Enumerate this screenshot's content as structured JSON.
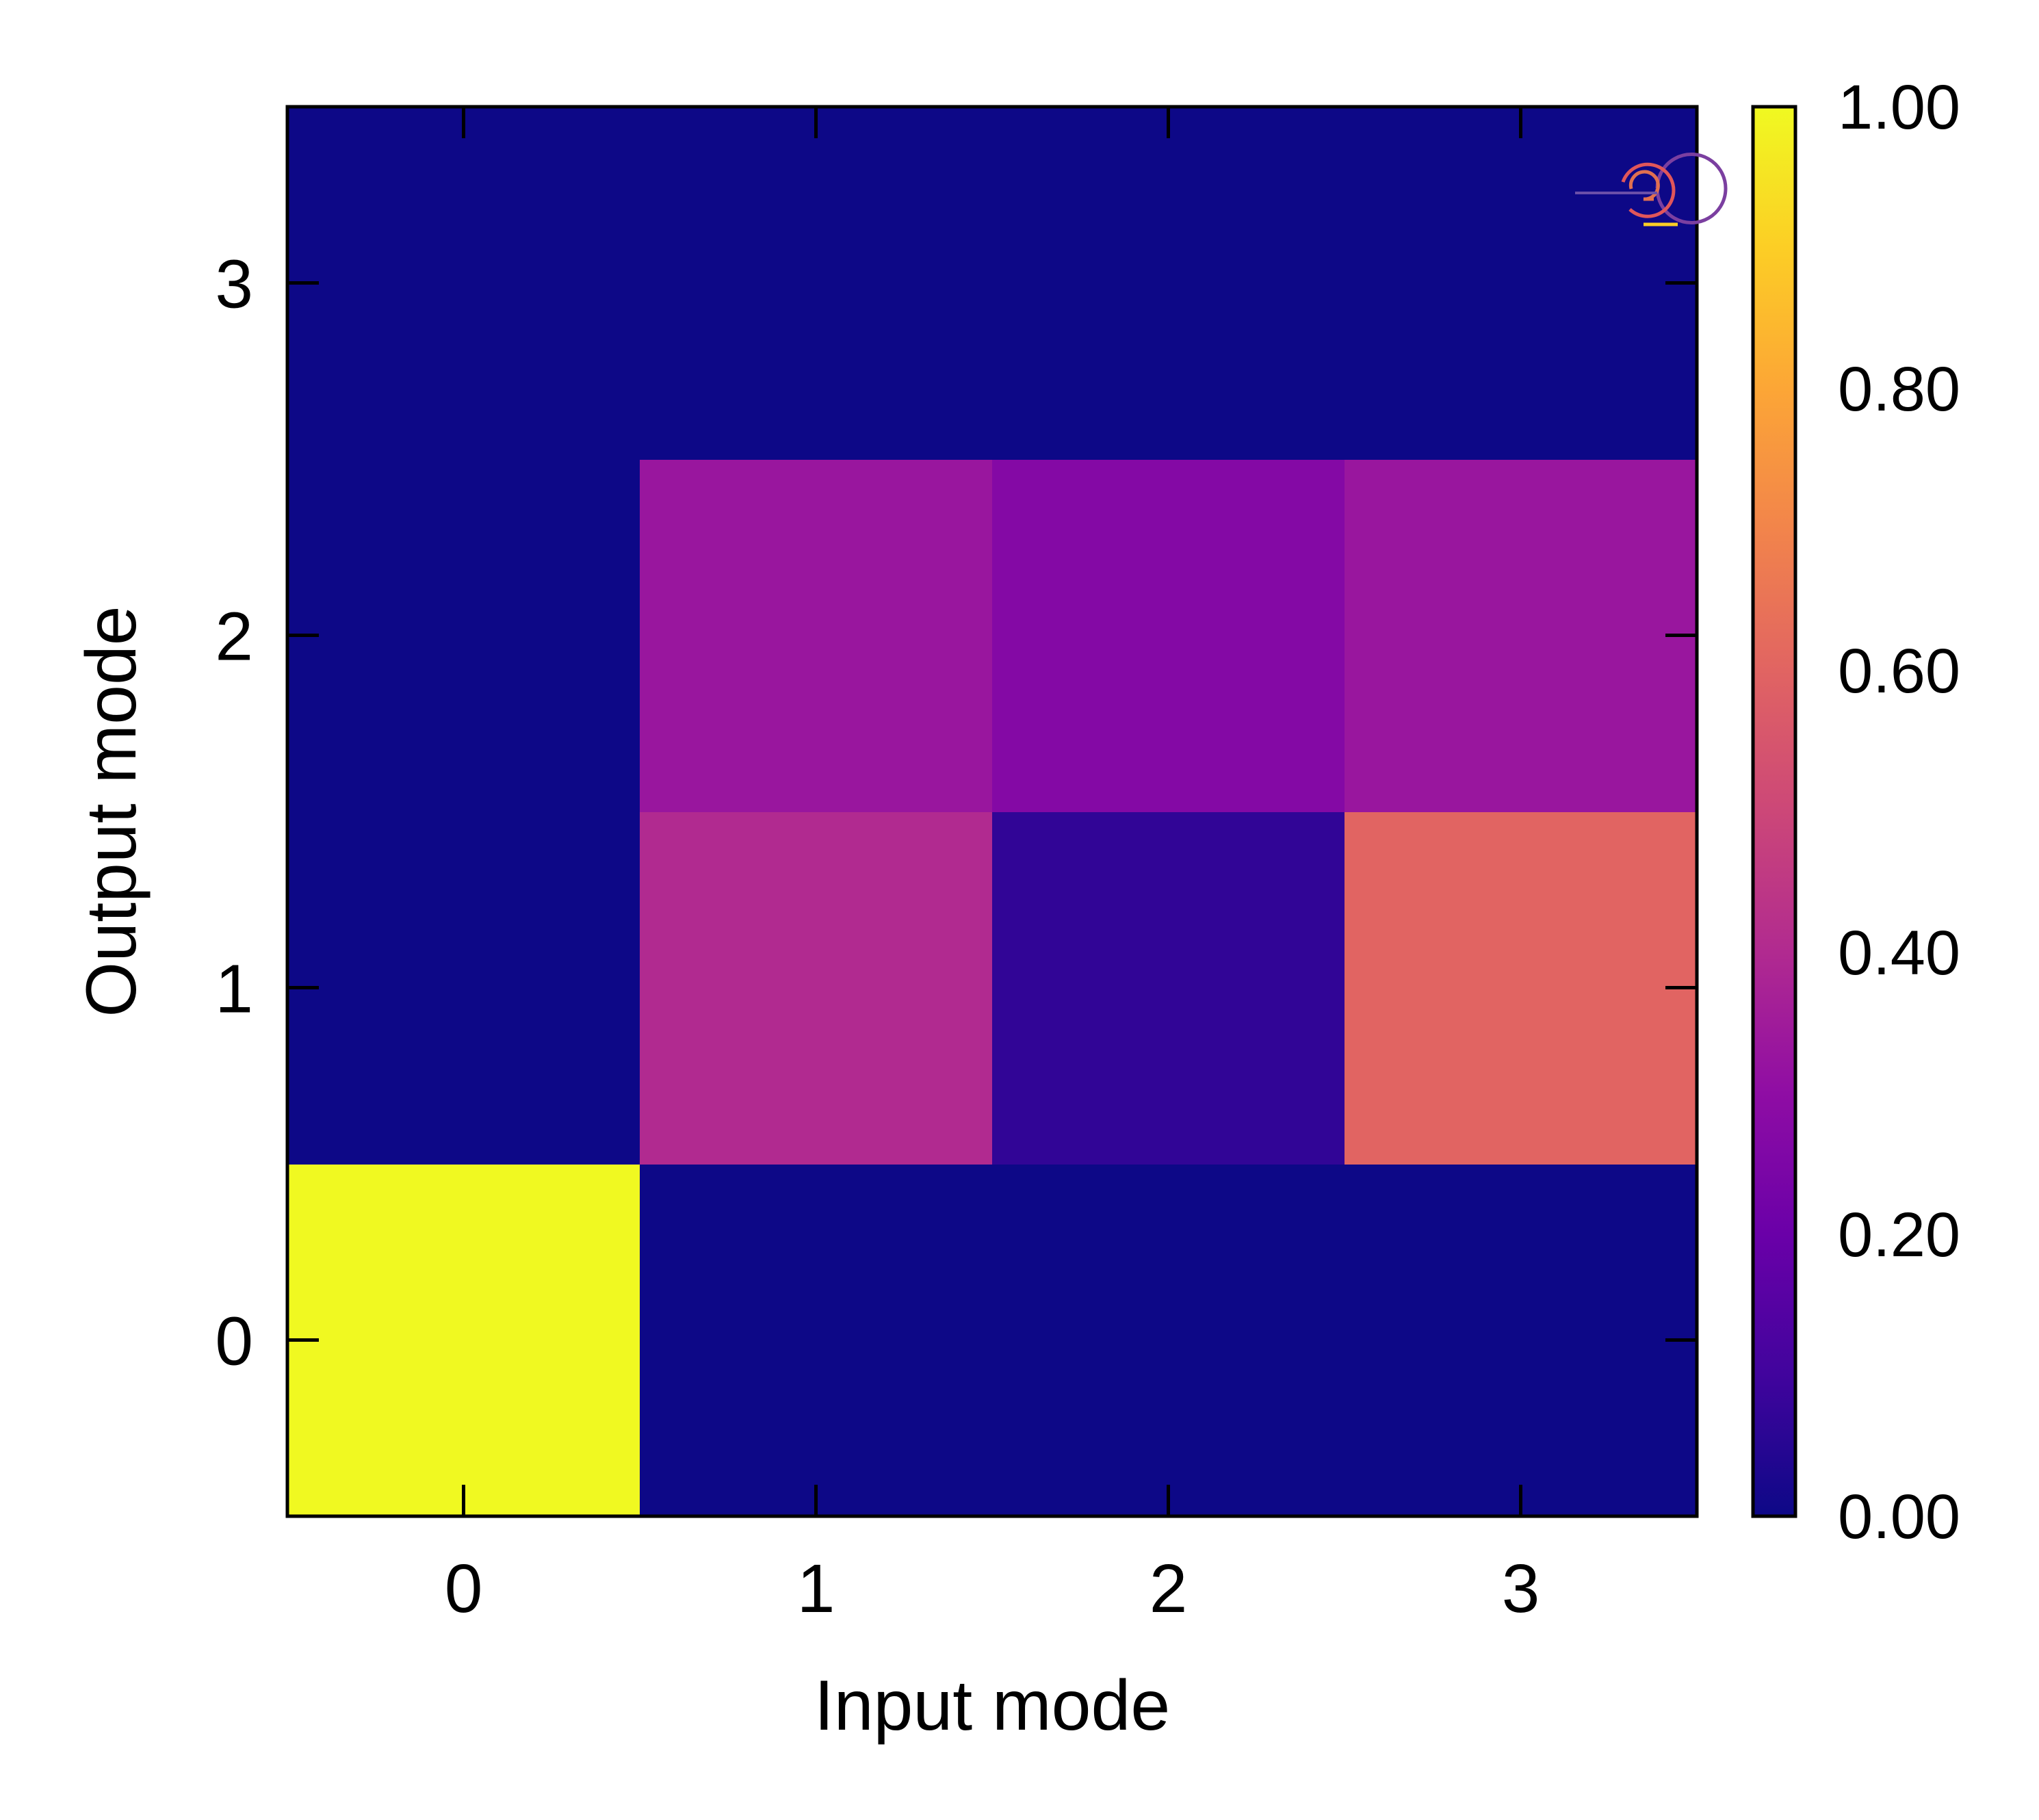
{
  "chart_data": {
    "type": "heatmap",
    "title": "",
    "xlabel": "Input mode",
    "ylabel": "Output mode",
    "x_categories": [
      "0",
      "1",
      "2",
      "3"
    ],
    "y_categories": [
      "0",
      "1",
      "2",
      "3"
    ],
    "colormap": "plasma",
    "colorbar": {
      "range": [
        0,
        1
      ],
      "ticks": [
        "0.00",
        "0.20",
        "0.40",
        "0.60",
        "0.80",
        "1.00"
      ]
    },
    "grid": false,
    "logo": "spiral-logo-icon",
    "rows": [
      {
        "output_mode": "0",
        "values": [
          1.0,
          0.0,
          0.0,
          0.0
        ]
      },
      {
        "output_mode": "1",
        "values": [
          0.0,
          0.4,
          0.07,
          0.6
        ]
      },
      {
        "output_mode": "2",
        "values": [
          0.0,
          0.33,
          0.27,
          0.33
        ]
      },
      {
        "output_mode": "3",
        "values": [
          0.0,
          0.0,
          0.0,
          0.0
        ]
      }
    ]
  }
}
